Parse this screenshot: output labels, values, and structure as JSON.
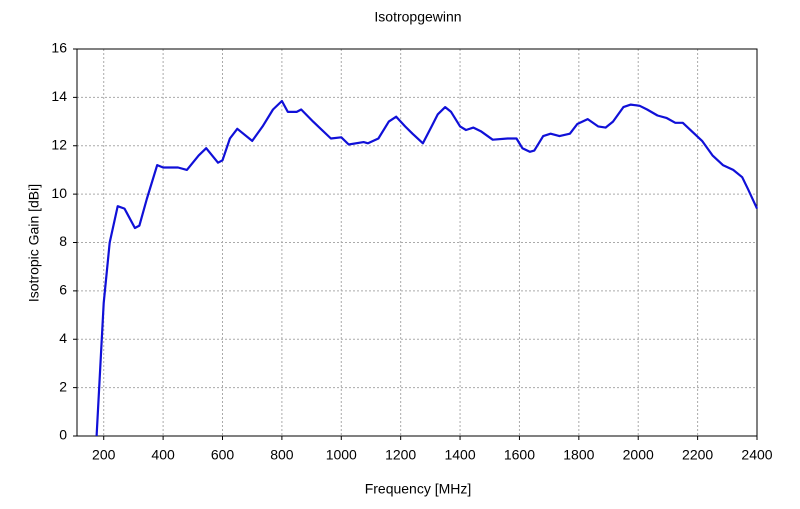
{
  "chart_data": {
    "type": "line",
    "title": "Isotropgewinn",
    "x_label": "Frequency [MHz]",
    "y_label": "Isotropic Gain [dBi]",
    "x": [
      176,
      200,
      220,
      247,
      270,
      305,
      320,
      345,
      380,
      400,
      450,
      480,
      520,
      545,
      585,
      600,
      625,
      650,
      700,
      735,
      770,
      800,
      820,
      850,
      865,
      905,
      965,
      1000,
      1025,
      1075,
      1090,
      1125,
      1160,
      1185,
      1215,
      1240,
      1275,
      1300,
      1325,
      1350,
      1370,
      1400,
      1420,
      1445,
      1470,
      1510,
      1560,
      1590,
      1610,
      1635,
      1650,
      1680,
      1705,
      1735,
      1770,
      1795,
      1830,
      1865,
      1890,
      1915,
      1950,
      1975,
      2005,
      2030,
      2065,
      2095,
      2125,
      2150,
      2180,
      2215,
      2250,
      2285,
      2320,
      2350,
      2370,
      2400
    ],
    "series": [
      {
        "name": "Isotropic Gain",
        "color": "#1010d8",
        "values": [
          0,
          5.5,
          8,
          9.5,
          9.4,
          8.6,
          8.7,
          9.8,
          11.2,
          11.1,
          11.1,
          11.0,
          11.6,
          11.9,
          11.3,
          11.4,
          12.3,
          12.7,
          12.2,
          12.8,
          13.5,
          13.85,
          13.4,
          13.4,
          13.5,
          13.0,
          12.3,
          12.35,
          12.05,
          12.15,
          12.1,
          12.3,
          13.0,
          13.2,
          12.8,
          12.5,
          12.1,
          12.7,
          13.3,
          13.6,
          13.4,
          12.8,
          12.65,
          12.75,
          12.6,
          12.25,
          12.3,
          12.3,
          11.9,
          11.75,
          11.8,
          12.4,
          12.5,
          12.4,
          12.5,
          12.9,
          13.1,
          12.8,
          12.75,
          13.0,
          13.6,
          13.7,
          13.65,
          13.5,
          13.25,
          13.15,
          12.95,
          12.95,
          12.6,
          12.2,
          11.6,
          11.2,
          11.0,
          10.7,
          10.2,
          9.4
        ]
      }
    ],
    "xlim": [
      110,
      2400
    ],
    "xticks": [
      200,
      400,
      600,
      800,
      1000,
      1200,
      1400,
      1600,
      1800,
      2000,
      2200,
      2400
    ],
    "ylim": [
      0,
      16
    ],
    "yticks": [
      0,
      2,
      4,
      6,
      8,
      10,
      12,
      14,
      16
    ],
    "grid": true
  }
}
